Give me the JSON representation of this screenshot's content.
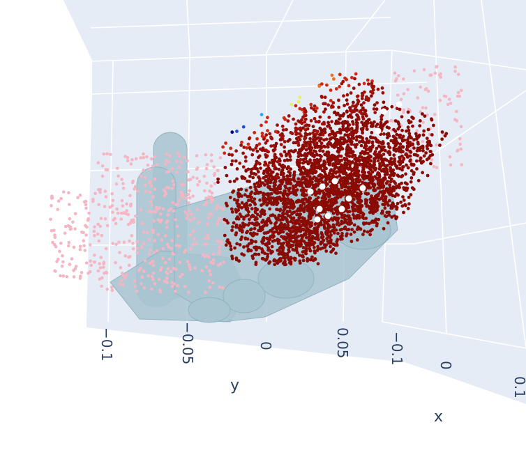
{
  "chart_data": {
    "type": "scatter3d",
    "background_color": "#e5ecf6",
    "grid_color": "#ffffff",
    "colorscale": [
      "#00008b",
      "#1e4fd8",
      "#2ea8e8",
      "#7ee0c8",
      "#e8f060",
      "#ffc040",
      "#f07020",
      "#d02810",
      "#a01008",
      "#8a0a04"
    ],
    "series": [
      {
        "color": "#f4b6c2"
      },
      {
        "color": "#a8c4d0"
      },
      {
        "color": "#8a0a04"
      },
      {
        "color": "#ffffff"
      }
    ],
    "axes": {
      "y": {
        "title": "y",
        "ticks": [
          "−0.1",
          "−0.05",
          "0",
          "0.05"
        ]
      },
      "x": {
        "title": "x",
        "ticks": [
          "−0.1",
          "0",
          "0.1"
        ]
      }
    }
  }
}
